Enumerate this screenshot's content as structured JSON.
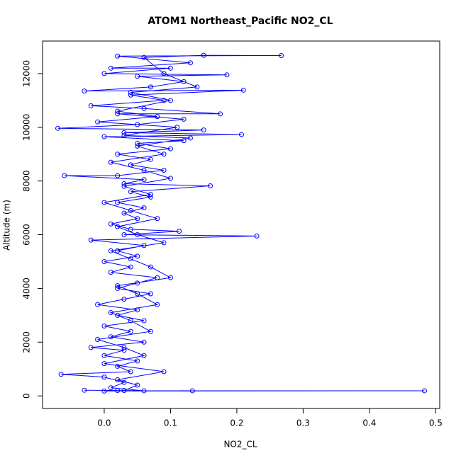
{
  "chart_data": {
    "type": "line",
    "markers": true,
    "title": "ATOM1 Northeast_Pacific NO2_CL",
    "x_label": "NO2_CL",
    "y_label": "Altitude (m)",
    "color": "#0000ff",
    "x": [
      0.0,
      0.483,
      0.133,
      0.02,
      -0.03,
      0.06,
      0.01,
      0.03,
      0.0,
      -0.065,
      0.04,
      0.02,
      0.05,
      0.0,
      0.03,
      -0.02,
      0.06,
      0.01,
      0.04,
      0.0,
      0.06,
      0.02,
      0.05,
      -0.01,
      0.03,
      0.07,
      0.02,
      0.05,
      0.08,
      0.01,
      0.04,
      0.0,
      0.05,
      0.02,
      0.06,
      -0.02,
      0.23,
      0.03,
      0.113,
      0.04,
      0.01,
      0.05,
      0.03,
      0.06,
      0.02,
      0.07,
      0.04,
      0.16,
      0.03,
      0.06,
      -0.06,
      0.02,
      0.09,
      0.04,
      0.07,
      0.02,
      0.1,
      0.05,
      0.12,
      0.0,
      0.207,
      0.03,
      0.15,
      -0.07,
      0.05,
      0.12,
      0.02,
      0.175,
      0.06,
      -0.02,
      0.09,
      0.04,
      0.21,
      -0.03,
      0.07,
      0.12,
      0.05,
      0.185,
      0.0,
      0.1,
      0.01,
      0.13,
      0.02,
      0.267,
      0.15,
      0.06,
      0.09,
      0.14,
      0.04,
      0.1,
      0.02,
      0.08,
      -0.01,
      0.11,
      0.03,
      0.13,
      0.05,
      0.09,
      0.01,
      0.06,
      0.1,
      0.03,
      0.07,
      0.0,
      0.04,
      0.08,
      0.02,
      0.05,
      0.09,
      0.01,
      0.04,
      0.07,
      0.1,
      0.02,
      0.05,
      0.08,
      0.01,
      0.04,
      0.07,
      -0.01,
      0.03,
      0.06,
      0.0,
      0.09,
      0.02,
      0.05,
      0.03
    ],
    "values": [
      180,
      190,
      190,
      200,
      210,
      190,
      300,
      500,
      700,
      800,
      900,
      1100,
      1300,
      1500,
      1700,
      1800,
      2000,
      2200,
      2400,
      2600,
      2800,
      3000,
      3200,
      3400,
      3600,
      3800,
      4000,
      4200,
      4400,
      4600,
      4800,
      5000,
      5200,
      5400,
      5600,
      5800,
      5950,
      6000,
      6130,
      6200,
      6400,
      6600,
      6800,
      7000,
      7200,
      7400,
      7600,
      7820,
      7900,
      8050,
      8200,
      8200,
      8400,
      8600,
      8800,
      9000,
      9200,
      9400,
      9500,
      9650,
      9730,
      9800,
      9900,
      9960,
      10100,
      10300,
      10500,
      10500,
      10700,
      10800,
      11000,
      11200,
      11380,
      11350,
      11500,
      11700,
      11900,
      11950,
      12000,
      12200,
      12200,
      12400,
      12650,
      12670,
      12680,
      12600,
      12000,
      11500,
      11300,
      11000,
      10600,
      10400,
      10200,
      10000,
      9700,
      9600,
      9300,
      9000,
      8700,
      8400,
      8100,
      7800,
      7500,
      7200,
      6900,
      6600,
      6300,
      6000,
      5700,
      5400,
      5100,
      4800,
      4400,
      4100,
      3800,
      3400,
      3100,
      2800,
      2400,
      2100,
      1800,
      1500,
      1200,
      900,
      600,
      400,
      200
    ],
    "xlim": [
      -0.093,
      0.506
    ],
    "xticks": [
      {
        "value": 0,
        "label": "0.0"
      },
      {
        "value": 0.1,
        "label": "0.1"
      },
      {
        "value": 0.2,
        "label": "0.2"
      },
      {
        "value": 0.3,
        "label": "0.3"
      },
      {
        "value": 0.4,
        "label": "0.4"
      },
      {
        "value": 0.5,
        "label": "0.5"
      }
    ],
    "ylim": [
      -470,
      13210
    ],
    "yticks": [
      0,
      2000,
      4000,
      6000,
      8000,
      10000,
      12000
    ]
  }
}
